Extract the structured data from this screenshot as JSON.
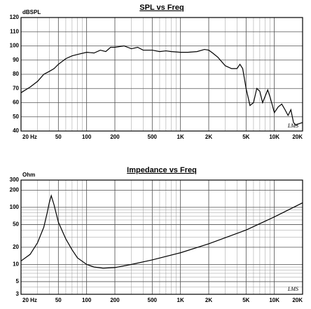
{
  "chart_data": [
    {
      "type": "line",
      "title": "SPL vs Freq",
      "ylabel": "dBSPL",
      "watermark": "LMS",
      "xscale": "log",
      "xlim": [
        20,
        20000
      ],
      "xticks": [
        {
          "value": 20,
          "label": "20 Hz"
        },
        50,
        100,
        200,
        500,
        {
          "value": 1000,
          "label": "1K"
        },
        {
          "value": 2000,
          "label": "2K"
        },
        {
          "value": 5000,
          "label": "5K"
        },
        {
          "value": 10000,
          "label": "10K"
        },
        {
          "value": 20000,
          "label": "20K"
        }
      ],
      "ylim": [
        40,
        120
      ],
      "yticks": [
        40,
        50,
        60,
        70,
        80,
        90,
        100,
        110,
        120
      ],
      "grid": true,
      "minor_grid": true,
      "color": "#000000",
      "x": [
        20,
        25,
        30,
        35,
        40,
        45,
        50,
        60,
        70,
        80,
        100,
        120,
        140,
        160,
        180,
        200,
        250,
        300,
        350,
        400,
        500,
        600,
        700,
        800,
        1000,
        1200,
        1500,
        1800,
        2000,
        2200,
        2500,
        3000,
        3500,
        4000,
        4300,
        4600,
        5000,
        5500,
        6000,
        6500,
        7000,
        7500,
        8500,
        9000,
        10000,
        11000,
        12000,
        13000,
        14000,
        15000,
        16000,
        17000,
        18000,
        20000
      ],
      "values": [
        67,
        71,
        75,
        80,
        82,
        84,
        87,
        91,
        93,
        94,
        95.5,
        95,
        97,
        96,
        99,
        99,
        100,
        98,
        99,
        97,
        97,
        96,
        96.5,
        96,
        95.5,
        95.5,
        96,
        97.5,
        97,
        95,
        92,
        86,
        84,
        84,
        87,
        84,
        70,
        58,
        60,
        70,
        68,
        60,
        69,
        64,
        53,
        57,
        59,
        55,
        51,
        55,
        46,
        44,
        45,
        46
      ]
    },
    {
      "type": "line",
      "title": "Impedance vs Freq",
      "ylabel": "Ohm",
      "watermark": "LMS",
      "xscale": "log",
      "xlim": [
        20,
        20000
      ],
      "xticks": [
        {
          "value": 20,
          "label": "20 Hz"
        },
        50,
        100,
        200,
        500,
        {
          "value": 1000,
          "label": "1K"
        },
        {
          "value": 2000,
          "label": "2K"
        },
        {
          "value": 5000,
          "label": "5K"
        },
        {
          "value": 10000,
          "label": "10K"
        },
        {
          "value": 20000,
          "label": "20K"
        }
      ],
      "yscale": "log",
      "ylim": [
        3,
        300
      ],
      "yticks": [
        3,
        5,
        10,
        20,
        50,
        100,
        200,
        300
      ],
      "grid": true,
      "minor_grid": true,
      "color": "#000000",
      "x": [
        20,
        25,
        30,
        35,
        38,
        40,
        42,
        45,
        50,
        60,
        70,
        80,
        100,
        120,
        150,
        200,
        300,
        500,
        1000,
        2000,
        5000,
        10000,
        20000
      ],
      "values": [
        11.5,
        15,
        24,
        45,
        80,
        120,
        160,
        110,
        55,
        28,
        18,
        13,
        10,
        9,
        8.6,
        8.8,
        10,
        12,
        16,
        23,
        40,
        68,
        120
      ]
    }
  ]
}
